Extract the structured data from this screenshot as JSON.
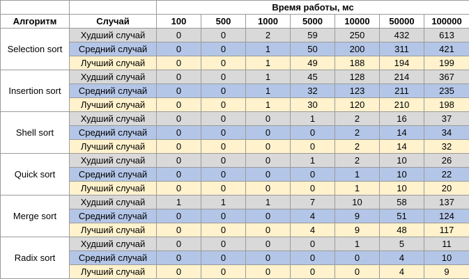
{
  "table": {
    "group_header": "Время работы, мс",
    "col_algorithm": "Алгоритм",
    "col_case": "Случай",
    "sizes": [
      "100",
      "500",
      "1000",
      "5000",
      "10000",
      "50000",
      "100000"
    ],
    "case_worst": "Худший случай",
    "case_avg": "Средний случай",
    "case_best": "Лучший случай",
    "algorithms": [
      {
        "name": "Selection sort",
        "worst": [
          "0",
          "0",
          "2",
          "59",
          "250",
          "432",
          "613"
        ],
        "avg": [
          "0",
          "0",
          "1",
          "50",
          "200",
          "311",
          "421"
        ],
        "best": [
          "0",
          "0",
          "1",
          "49",
          "188",
          "194",
          "199"
        ]
      },
      {
        "name": "Insertion sort",
        "worst": [
          "0",
          "0",
          "1",
          "45",
          "128",
          "214",
          "367"
        ],
        "avg": [
          "0",
          "0",
          "1",
          "32",
          "123",
          "211",
          "235"
        ],
        "best": [
          "0",
          "0",
          "1",
          "30",
          "120",
          "210",
          "198"
        ]
      },
      {
        "name": "Shell sort",
        "worst": [
          "0",
          "0",
          "0",
          "1",
          "2",
          "16",
          "37"
        ],
        "avg": [
          "0",
          "0",
          "0",
          "0",
          "2",
          "14",
          "34"
        ],
        "best": [
          "0",
          "0",
          "0",
          "0",
          "2",
          "14",
          "32"
        ]
      },
      {
        "name": "Quick sort",
        "worst": [
          "0",
          "0",
          "0",
          "1",
          "2",
          "10",
          "26"
        ],
        "avg": [
          "0",
          "0",
          "0",
          "0",
          "1",
          "10",
          "22"
        ],
        "best": [
          "0",
          "0",
          "0",
          "0",
          "1",
          "10",
          "20"
        ]
      },
      {
        "name": "Merge sort",
        "worst": [
          "1",
          "1",
          "1",
          "7",
          "10",
          "58",
          "137"
        ],
        "avg": [
          "0",
          "0",
          "0",
          "4",
          "9",
          "51",
          "124"
        ],
        "best": [
          "0",
          "0",
          "0",
          "4",
          "9",
          "48",
          "117"
        ]
      },
      {
        "name": "Radix sort",
        "worst": [
          "0",
          "0",
          "0",
          "0",
          "1",
          "5",
          "11"
        ],
        "avg": [
          "0",
          "0",
          "0",
          "0",
          "0",
          "4",
          "10"
        ],
        "best": [
          "0",
          "0",
          "0",
          "0",
          "0",
          "4",
          "9"
        ]
      }
    ]
  }
}
